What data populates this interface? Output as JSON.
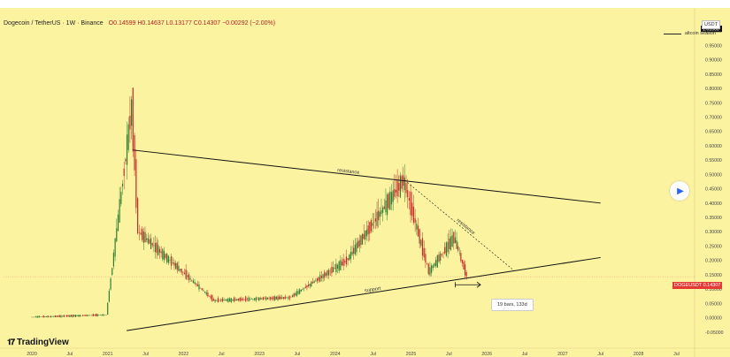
{
  "header": {
    "symbol": "Dogecoin / TetherUS · 1W · Binance",
    "ohlc": "O0.14599 H0.14637 L0.13177 C0.14307 −0.00292 (−2.00%)"
  },
  "legend": {
    "label": "altcoin season"
  },
  "currency": "USDT",
  "brand": "TradingView",
  "symbol_tag": "DOGEUSDT  0.14307",
  "tooltip": "19 bars, 133d",
  "colors": {
    "background": "#fcf3a1",
    "up": "#2e7d32",
    "down": "#c62828",
    "line": "#111111"
  },
  "chart_data": {
    "type": "candlestick",
    "x_ticks": [
      "2020",
      "Jul",
      "2021",
      "Jul",
      "2022",
      "Jul",
      "2023",
      "Jul",
      "2024",
      "Jul",
      "2025",
      "Jul",
      "2026",
      "Jul",
      "2027",
      "Jul",
      "2028",
      "Jul"
    ],
    "y_ticks": [
      "1.00000",
      "0.95000",
      "0.90000",
      "0.85000",
      "0.80000",
      "0.75000",
      "0.70000",
      "0.65000",
      "0.60000",
      "0.55000",
      "0.50000",
      "0.45000",
      "0.40000",
      "0.35000",
      "0.30000",
      "0.25000",
      "0.20000",
      "0.15000",
      "0.10000",
      "0.05000",
      "0.00000",
      "-0.05000"
    ],
    "y_range": [
      -0.06,
      1.05
    ],
    "price_label": "1.01000",
    "last_price": 0.14307,
    "annotations": [
      {
        "text": "resistance",
        "x1": "2021-05",
        "y1": 0.585,
        "x2": "2027-07",
        "y2": 0.4
      },
      {
        "text": "resistance",
        "x1": "2024-12",
        "y1": 0.48,
        "x2": "2026-05",
        "y2": 0.17
      },
      {
        "text": "support",
        "x1": "2021-04",
        "y1": -0.045,
        "x2": "2027-07",
        "y2": 0.21
      }
    ],
    "key_points": [
      {
        "date": "2020-01",
        "price": 0.002
      },
      {
        "date": "2021-01",
        "price": 0.01
      },
      {
        "date": "2021-05",
        "price": 0.74
      },
      {
        "date": "2021-06",
        "price": 0.3
      },
      {
        "date": "2022-06",
        "price": 0.06
      },
      {
        "date": "2023-06",
        "price": 0.07
      },
      {
        "date": "2024-03",
        "price": 0.2
      },
      {
        "date": "2024-12",
        "price": 0.48
      },
      {
        "date": "2025-04",
        "price": 0.16
      },
      {
        "date": "2025-08",
        "price": 0.28
      },
      {
        "date": "2025-10",
        "price": 0.14307
      }
    ]
  }
}
